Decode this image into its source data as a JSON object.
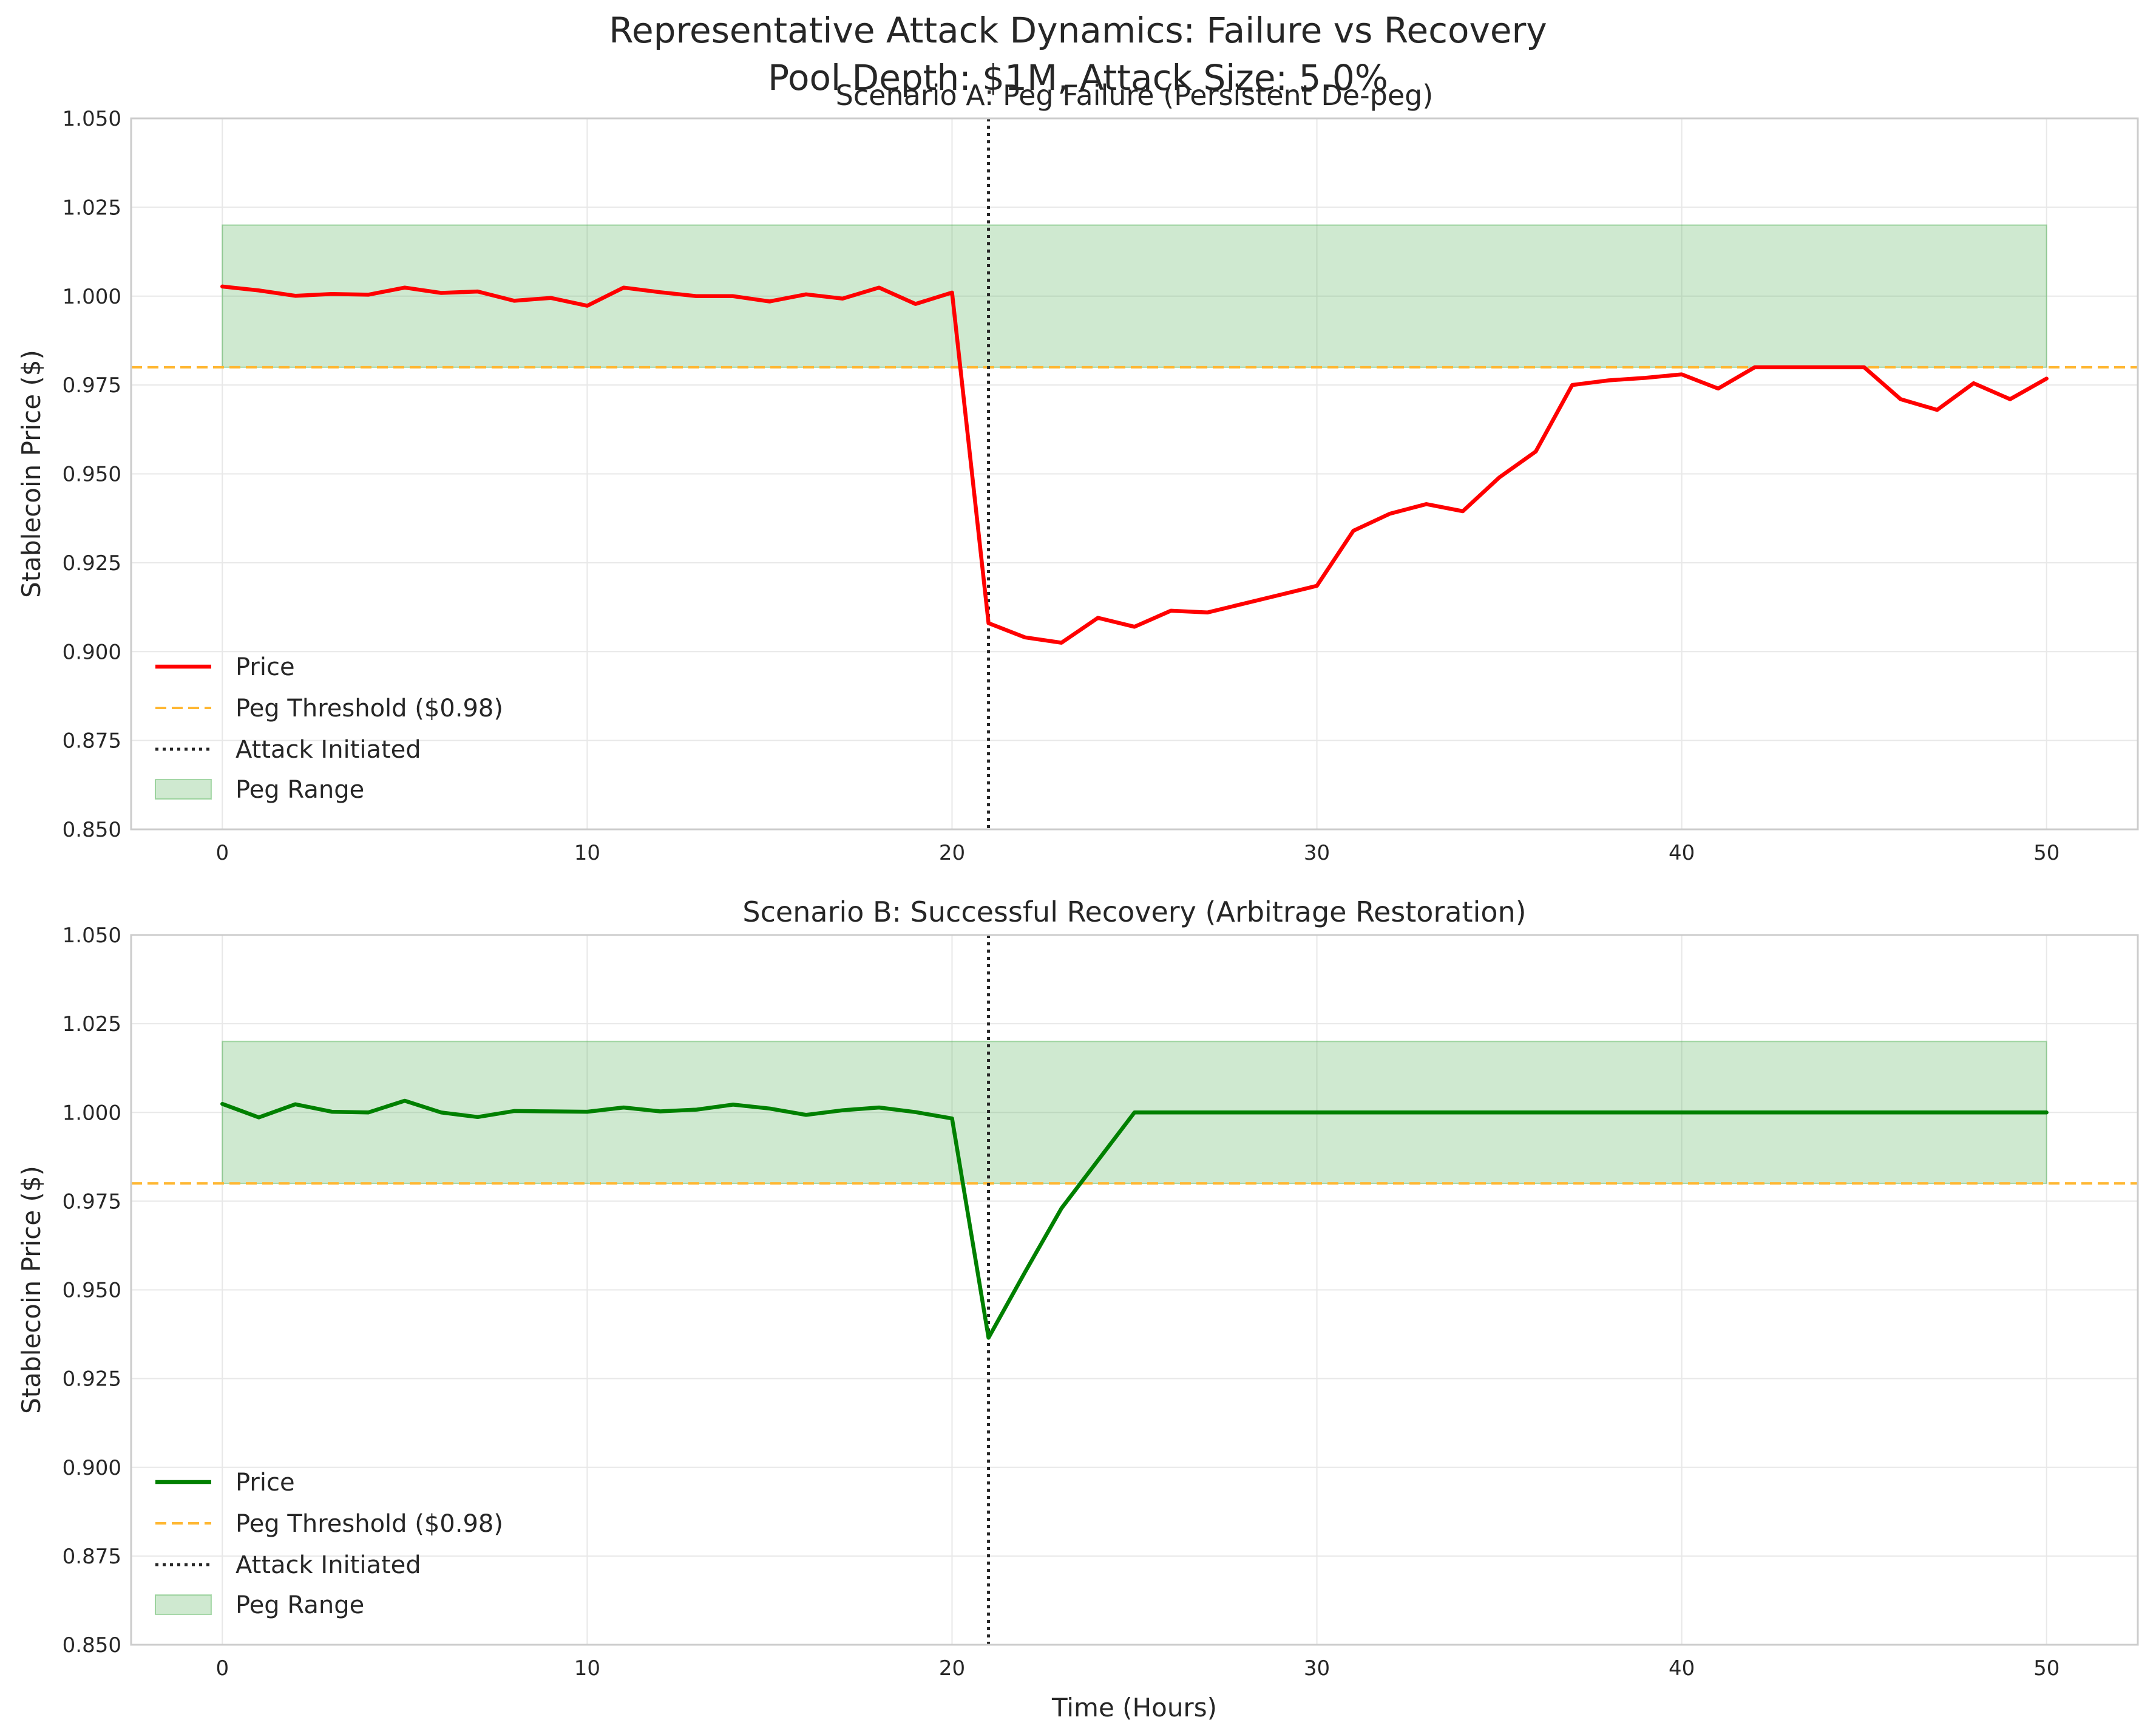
{
  "figure": {
    "suptitle_line1": "Representative Attack Dynamics: Failure vs Recovery",
    "suptitle_line2": "Pool Depth: $1M, Attack Size: 5.0%"
  },
  "chart_data": [
    {
      "type": "line",
      "title": "Scenario A: Peg Failure (Persistent De-peg)",
      "xlabel": "",
      "ylabel": "Stablecoin Price ($)",
      "xlim": [
        -2.5,
        52.5
      ],
      "ylim": [
        0.85,
        1.05
      ],
      "xticks": [
        0,
        10,
        20,
        30,
        40,
        50
      ],
      "yticks": [
        0.85,
        0.875,
        0.9,
        0.925,
        0.95,
        0.975,
        1.0,
        1.025,
        1.05
      ],
      "xtick_labels": [
        "0",
        "10",
        "20",
        "30",
        "40",
        "50"
      ],
      "ytick_labels": [
        "0.850",
        "0.875",
        "0.900",
        "0.925",
        "0.950",
        "0.975",
        "1.000",
        "1.025",
        "1.050"
      ],
      "grid": true,
      "legend_position": "lower-left",
      "peg_threshold": 0.98,
      "peg_range": {
        "x": [
          0,
          50
        ],
        "y": [
          0.98,
          1.02
        ]
      },
      "attack_time": 21,
      "series": [
        {
          "name": "Price",
          "color": "#ff0000",
          "x": [
            0,
            1,
            2,
            3,
            4,
            5,
            6,
            7,
            8,
            9,
            10,
            11,
            12,
            13,
            14,
            15,
            16,
            17,
            18,
            19,
            20,
            21,
            22,
            23,
            24,
            25,
            26,
            27,
            28,
            29,
            30,
            31,
            32,
            33,
            34,
            35,
            36,
            37,
            38,
            39,
            40,
            41,
            42,
            43,
            44,
            45,
            46,
            47,
            48,
            49,
            50
          ],
          "y": [
            1.0027,
            1.0016,
            1.0001,
            1.0006,
            1.0004,
            1.0024,
            1.0009,
            1.0013,
            0.9987,
            0.9995,
            0.9973,
            1.0024,
            1.0011,
            1.0,
            1.0,
            0.9985,
            1.0005,
            0.9993,
            1.0024,
            0.9978,
            1.001,
            0.908,
            0.904,
            0.9025,
            0.9095,
            0.907,
            0.9115,
            0.911,
            0.9135,
            0.916,
            0.9185,
            0.934,
            0.9388,
            0.9415,
            0.9395,
            0.949,
            0.9563,
            0.975,
            0.9763,
            0.977,
            0.978,
            0.974,
            0.98,
            0.98,
            0.98,
            0.98,
            0.971,
            0.968,
            0.9755,
            0.971,
            0.9768
          ]
        }
      ],
      "legend": [
        "Price",
        "Peg Threshold ($0.98)",
        "Attack Initiated",
        "Peg Range"
      ]
    },
    {
      "type": "line",
      "title": "Scenario B: Successful Recovery (Arbitrage Restoration)",
      "xlabel": "Time (Hours)",
      "ylabel": "Stablecoin Price ($)",
      "xlim": [
        -2.5,
        52.5
      ],
      "ylim": [
        0.85,
        1.05
      ],
      "xticks": [
        0,
        10,
        20,
        30,
        40,
        50
      ],
      "yticks": [
        0.85,
        0.875,
        0.9,
        0.925,
        0.95,
        0.975,
        1.0,
        1.025,
        1.05
      ],
      "xtick_labels": [
        "0",
        "10",
        "20",
        "30",
        "40",
        "50"
      ],
      "ytick_labels": [
        "0.850",
        "0.875",
        "0.900",
        "0.925",
        "0.950",
        "0.975",
        "1.000",
        "1.025",
        "1.050"
      ],
      "grid": true,
      "legend_position": "lower-left",
      "peg_threshold": 0.98,
      "peg_range": {
        "x": [
          0,
          50
        ],
        "y": [
          0.98,
          1.02
        ]
      },
      "attack_time": 21,
      "series": [
        {
          "name": "Price",
          "color": "#008000",
          "x": [
            0,
            1,
            2,
            3,
            4,
            5,
            6,
            7,
            8,
            9,
            10,
            11,
            12,
            13,
            14,
            15,
            16,
            17,
            18,
            19,
            20,
            21,
            22,
            23,
            24,
            25,
            26,
            27,
            28,
            29,
            30,
            31,
            32,
            33,
            34,
            35,
            36,
            37,
            38,
            39,
            40,
            41,
            42,
            43,
            44,
            45,
            46,
            47,
            48,
            49,
            50
          ],
          "y": [
            1.0024,
            0.9986,
            1.0023,
            1.0002,
            1.0,
            1.0033,
            1.0,
            0.9987,
            1.0004,
            1.0003,
            1.0002,
            1.0014,
            1.0003,
            1.0008,
            1.0022,
            1.0011,
            0.9993,
            1.0006,
            1.0014,
            1.0001,
            0.9983,
            0.9365,
            0.955,
            0.973,
            0.9865,
            1.0,
            1.0,
            1.0,
            1.0,
            1.0,
            1.0,
            1.0,
            1.0,
            1.0,
            1.0,
            1.0,
            1.0,
            1.0,
            1.0,
            1.0,
            1.0,
            1.0,
            1.0,
            1.0,
            1.0,
            1.0,
            1.0,
            1.0,
            1.0,
            1.0,
            1.0
          ]
        }
      ],
      "legend": [
        "Price",
        "Peg Threshold ($0.98)",
        "Attack Initiated",
        "Peg Range"
      ]
    }
  ],
  "style": {
    "threshold_color": "#ffb732",
    "attack_line_color": "#262626",
    "peg_fill_color": "#4caf50",
    "grid_color": "#e8e8e8",
    "spine_color": "#cccccc"
  }
}
